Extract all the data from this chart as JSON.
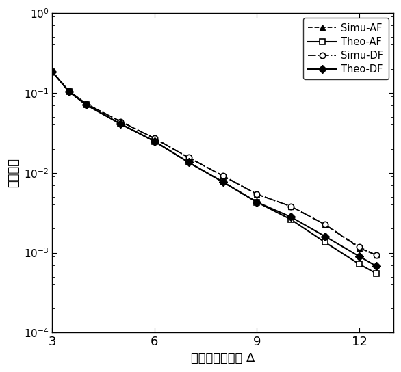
{
  "x_pts": [
    3,
    3.5,
    4,
    5,
    6,
    7,
    8,
    9,
    10,
    11,
    12,
    12.5
  ],
  "simu_af_y": [
    0.185,
    0.105,
    0.073,
    0.044,
    0.027,
    0.0155,
    0.0092,
    0.0054,
    0.0038,
    0.00225,
    0.00115,
    0.00093
  ],
  "theo_af_y": [
    0.185,
    0.103,
    0.071,
    0.041,
    0.0248,
    0.0135,
    0.0077,
    0.0043,
    0.0026,
    0.00135,
    0.00072,
    0.00055
  ],
  "simu_df_y": [
    0.185,
    0.105,
    0.073,
    0.044,
    0.027,
    0.0155,
    0.0092,
    0.0054,
    0.0038,
    0.00225,
    0.00118,
    0.00093
  ],
  "theo_df_y": [
    0.185,
    0.103,
    0.071,
    0.041,
    0.0248,
    0.0135,
    0.0077,
    0.0043,
    0.0028,
    0.0016,
    0.0009,
    0.00068
  ],
  "xlabel": "信道平均信噪比 Δ",
  "ylabel": "中断概率",
  "xlim": [
    3,
    13
  ],
  "ylim": [
    0.0001,
    1.0
  ],
  "xticks": [
    3,
    6,
    9,
    12
  ],
  "legend_labels": [
    "Simu-AF",
    "Theo-AF",
    "Simu-DF",
    "Theo-DF"
  ],
  "bg_color": "#ffffff",
  "line_color": "#000000"
}
